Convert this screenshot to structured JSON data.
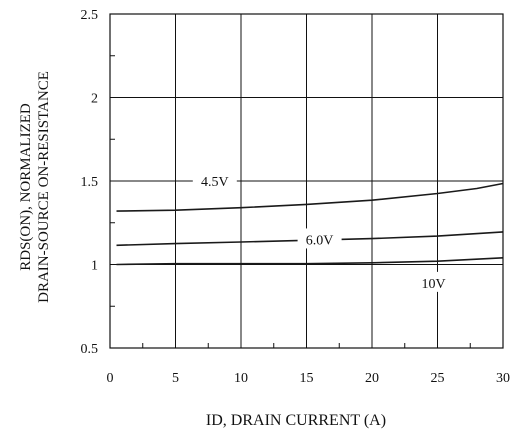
{
  "chart_data": {
    "type": "line",
    "title": "",
    "xlabel": "ID, DRAIN CURRENT (A)",
    "ylabel_lines": [
      "RDS(ON), NORMALIZED",
      "DRAIN-SOURCE ON-RESISTANCE"
    ],
    "xlim": [
      0,
      30
    ],
    "ylim": [
      0.5,
      2.5
    ],
    "x_ticks": [
      0,
      5,
      10,
      15,
      20,
      25,
      30
    ],
    "x_tick_labels": [
      "0",
      "5",
      "10",
      "15",
      "20",
      "25",
      "30"
    ],
    "y_ticks": [
      0.5,
      1,
      1.5,
      2,
      2.5
    ],
    "y_tick_labels": [
      "0.5",
      "1",
      "1.5",
      "2",
      "2.5"
    ],
    "grid": true,
    "series": [
      {
        "name": "4.5V",
        "x": [
          0.5,
          5,
          10,
          15,
          20,
          25,
          28,
          30
        ],
        "y": [
          1.32,
          1.325,
          1.34,
          1.36,
          1.385,
          1.425,
          1.455,
          1.485
        ]
      },
      {
        "name": "6.0V",
        "x": [
          0.5,
          5,
          10,
          15,
          20,
          25,
          30
        ],
        "y": [
          1.115,
          1.125,
          1.135,
          1.145,
          1.155,
          1.17,
          1.195
        ]
      },
      {
        "name": "10V",
        "x": [
          0.5,
          5,
          10,
          15,
          20,
          25,
          30
        ],
        "y": [
          1.0,
          1.005,
          1.005,
          1.005,
          1.01,
          1.02,
          1.04
        ]
      }
    ]
  }
}
